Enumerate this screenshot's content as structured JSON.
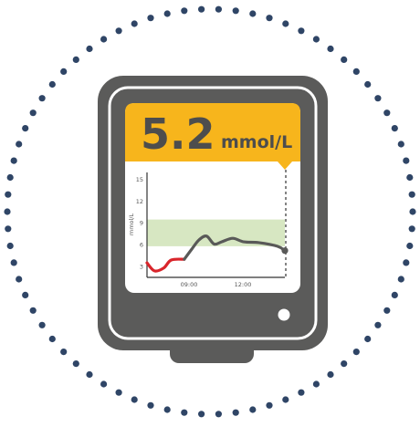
{
  "reading": {
    "value": "5.2",
    "unit": "mmol/L"
  },
  "chart_data": {
    "type": "line",
    "ylabel": "mmol/L",
    "y_ticks": [
      3,
      6,
      9,
      12,
      15
    ],
    "x_ticks": [
      "09:00",
      "12:00"
    ],
    "ylim": [
      1.5,
      16
    ],
    "target_range": [
      5.8,
      9.5
    ],
    "series": [
      {
        "segment": "low",
        "points": [
          [
            0,
            3.5
          ],
          [
            0.4,
            2.4
          ],
          [
            0.9,
            2.8
          ],
          [
            1.3,
            3.9
          ],
          [
            2.0,
            4.0
          ]
        ]
      },
      {
        "segment": "normal",
        "points": [
          [
            2.0,
            4.0
          ],
          [
            2.4,
            5.4
          ],
          [
            2.8,
            6.7
          ],
          [
            3.2,
            7.2
          ],
          [
            3.6,
            6.1
          ],
          [
            4.0,
            6.4
          ],
          [
            4.6,
            6.9
          ],
          [
            5.2,
            6.4
          ],
          [
            6.0,
            6.3
          ],
          [
            7.0,
            5.8
          ],
          [
            7.4,
            5.2
          ]
        ]
      }
    ]
  },
  "colors": {
    "device_body": "#5b5b5a",
    "banner": "#f7b51c",
    "banner_text": "#4d4d4d",
    "low": "#d9252b",
    "normal": "#595958",
    "target_band": "#d7e7c2",
    "dots": "#2f4566"
  }
}
